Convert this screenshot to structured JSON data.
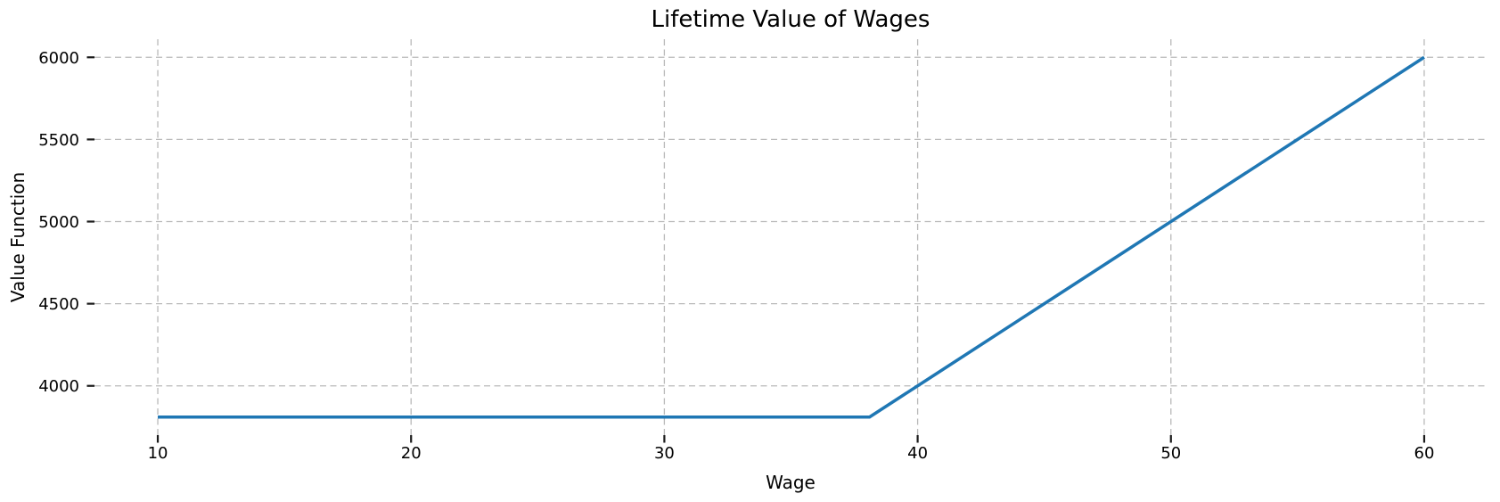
{
  "chart_data": {
    "type": "line",
    "title": "Lifetime Value of Wages",
    "xlabel": "Wage",
    "ylabel": "Value Function",
    "x": [
      10,
      20,
      30,
      38.1,
      40,
      45,
      50,
      55,
      60
    ],
    "series": [
      {
        "name": "value-function",
        "values": [
          3810,
          3810,
          3810,
          3810,
          4000,
          4500,
          5000,
          5500,
          6000
        ]
      }
    ],
    "xticks": [
      10,
      20,
      30,
      40,
      50,
      60
    ],
    "yticks": [
      4000,
      4500,
      5000,
      5500,
      6000
    ],
    "xlim": [
      7.5,
      62.5
    ],
    "ylim": [
      3700,
      6110
    ],
    "grid": "dashed-both",
    "legend": "none",
    "line_color": "#1f77b4",
    "line_width": 3.5,
    "grid_color": "#b9b9b9",
    "tick_color": "#1a1a1a",
    "text_color": "#000000",
    "background": "#ffffff"
  }
}
